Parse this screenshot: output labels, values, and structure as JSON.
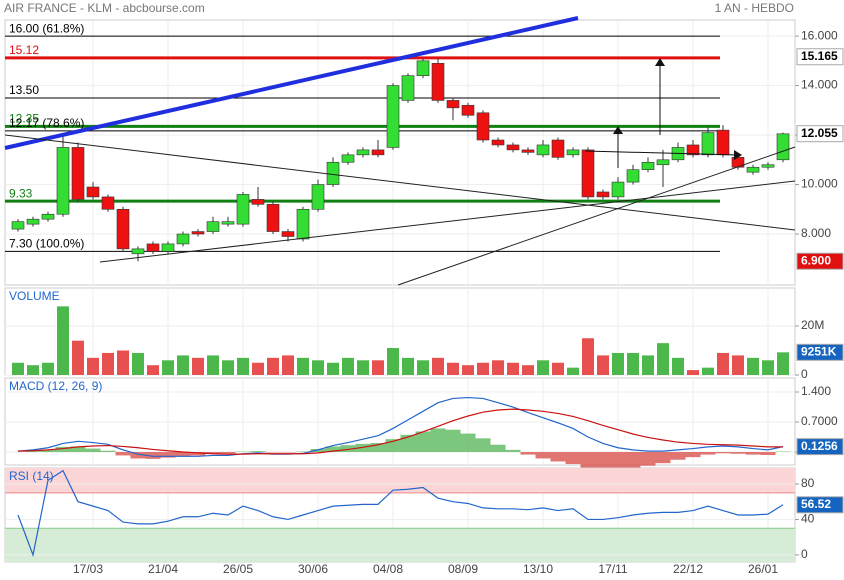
{
  "header": {
    "title": "AIR FRANCE - KLM - abcbourse.com",
    "period": "1 AN - HEBDO"
  },
  "chart_data": [
    {
      "type": "candlestick",
      "categories": [
        null,
        null,
        null,
        null,
        null,
        "17/03",
        null,
        null,
        null,
        null,
        "21/04",
        null,
        null,
        null,
        null,
        "26/05",
        null,
        null,
        null,
        null,
        "30/06",
        null,
        null,
        null,
        null,
        "04/08",
        null,
        null,
        null,
        null,
        "08/09",
        null,
        null,
        null,
        null,
        "13/10",
        null,
        null,
        null,
        null,
        "17/11",
        null,
        null,
        null,
        null,
        "22/12",
        null,
        null,
        null,
        null,
        "26/01",
        null
      ],
      "open": [
        8.2,
        8.4,
        8.6,
        8.8,
        11.5,
        9.9,
        9.5,
        9.0,
        7.2,
        7.6,
        7.3,
        7.6,
        8.1,
        8.1,
        8.4,
        8.4,
        9.4,
        9.2,
        8.1,
        7.8,
        9.0,
        10.0,
        10.9,
        11.2,
        11.4,
        11.5,
        13.4,
        14.4,
        14.9,
        13.4,
        13.2,
        12.9,
        11.8,
        11.6,
        11.4,
        11.2,
        11.8,
        11.2,
        11.4,
        9.7,
        9.5,
        10.1,
        10.6,
        10.8,
        11.0,
        11.6,
        11.2,
        12.2,
        11.1,
        10.5,
        10.7,
        11.0
      ],
      "high": [
        8.6,
        8.7,
        8.9,
        12.0,
        11.7,
        10.1,
        9.6,
        9.1,
        7.5,
        7.7,
        7.7,
        8.1,
        8.2,
        8.7,
        8.7,
        9.7,
        9.9,
        9.3,
        8.2,
        9.1,
        10.2,
        11.1,
        11.3,
        11.5,
        11.8,
        14.1,
        14.5,
        15.1,
        15.1,
        13.5,
        13.3,
        13.0,
        11.9,
        11.7,
        11.5,
        11.8,
        11.9,
        11.5,
        11.5,
        9.8,
        10.3,
        10.8,
        11.1,
        11.4,
        11.7,
        11.8,
        12.3,
        12.4,
        11.2,
        10.8,
        10.9,
        12.1
      ],
      "low": [
        8.1,
        8.3,
        8.5,
        8.7,
        9.3,
        9.4,
        8.9,
        7.3,
        6.9,
        7.2,
        7.2,
        7.5,
        7.9,
        8.0,
        8.3,
        8.3,
        9.1,
        8.0,
        7.7,
        7.7,
        8.9,
        9.9,
        10.8,
        11.1,
        11.1,
        11.4,
        13.3,
        14.3,
        13.3,
        12.6,
        12.7,
        11.7,
        11.5,
        11.3,
        11.2,
        11.1,
        11.0,
        11.1,
        9.4,
        9.4,
        9.4,
        10.0,
        10.5,
        9.9,
        10.9,
        11.1,
        11.1,
        11.1,
        10.6,
        10.4,
        10.6,
        10.9
      ],
      "close": [
        8.5,
        8.6,
        8.8,
        11.5,
        9.4,
        9.5,
        9.0,
        7.4,
        7.4,
        7.3,
        7.6,
        8.0,
        8.0,
        8.5,
        8.5,
        9.6,
        9.2,
        8.1,
        7.9,
        9.0,
        10.0,
        10.9,
        11.2,
        11.4,
        11.2,
        14.0,
        14.4,
        15.0,
        13.4,
        13.1,
        12.8,
        11.8,
        11.6,
        11.4,
        11.3,
        11.6,
        11.1,
        11.4,
        9.5,
        9.5,
        10.1,
        10.6,
        10.9,
        11.0,
        11.5,
        11.2,
        12.1,
        11.2,
        10.7,
        10.7,
        10.8,
        12.05
      ],
      "up_color": "#33dd33",
      "down_color": "#ee1111",
      "ylim": [
        5.94,
        16.65
      ],
      "yticks": [
        {
          "value": 16,
          "label": "16.000"
        },
        {
          "value": 14,
          "label": "14.000"
        },
        {
          "value": 12,
          "label": "12.000"
        },
        {
          "value": 10,
          "label": "10.000"
        },
        {
          "value": 8,
          "label": "8.000"
        }
      ],
      "levels": [
        {
          "label": "16.00 (61.8%)",
          "value": 16.0,
          "color": "#000000",
          "width": 1
        },
        {
          "label": "15.12",
          "value": 15.12,
          "color": "#e01010",
          "width": 3
        },
        {
          "label": "13.50",
          "value": 13.5,
          "color": "#000000",
          "width": 1
        },
        {
          "label": "12.35",
          "value": 12.35,
          "color": "#108010",
          "width": 3
        },
        {
          "label": "12.17 (78.6%)",
          "value": 12.17,
          "color": "#000000",
          "width": 1
        },
        {
          "label": "9.33",
          "value": 9.33,
          "color": "#108010",
          "width": 3
        },
        {
          "label": "7.30 (100.0%)",
          "value": 7.3,
          "color": "#000000",
          "width": 1
        }
      ],
      "badges": [
        {
          "value": 15.165,
          "label": "15.165",
          "color": "#ffffff",
          "text_color": "#000000"
        },
        {
          "value": 12.055,
          "label": "12.055",
          "color": "#ffffff",
          "text_color": "#000000"
        },
        {
          "value": 6.9,
          "label": "6.900",
          "color": "#e01010",
          "text_color": "#ffffff"
        }
      ]
    },
    {
      "type": "bar",
      "title": "VOLUME",
      "values": [
        5,
        4,
        5,
        28,
        14,
        7,
        9,
        10,
        9,
        4,
        6,
        8,
        7,
        8,
        6,
        7,
        5,
        7,
        8,
        7,
        6,
        5,
        7,
        6,
        6,
        11,
        7,
        6,
        7,
        5,
        4,
        5,
        6,
        5,
        4,
        6,
        5,
        3,
        15,
        8,
        9,
        9,
        8,
        13,
        7,
        2,
        3,
        9,
        8,
        7,
        6,
        9.251
      ],
      "up_color": "#4cb84c",
      "down_color": "#e85050",
      "ylim": [
        0,
        35.5
      ],
      "yticks": [
        {
          "value": 20,
          "label": "20M"
        },
        0
      ],
      "badges": [
        {
          "value": 9.251,
          "label": "9251K",
          "color": "#1565c0",
          "text_color": "#ffffff"
        }
      ]
    },
    {
      "type": "macd",
      "title": "MACD (12, 26, 9)",
      "series": [
        {
          "name": "MACD",
          "color": "#2266cc",
          "values": [
            0.02,
            0.05,
            0.1,
            0.2,
            0.25,
            0.22,
            0.18,
            0.05,
            -0.05,
            -0.1,
            -0.1,
            -0.1,
            -0.1,
            -0.08,
            -0.08,
            -0.04,
            -0.02,
            -0.05,
            -0.05,
            -0.03,
            0.05,
            0.15,
            0.22,
            0.3,
            0.38,
            0.55,
            0.75,
            0.95,
            1.15,
            1.25,
            1.27,
            1.25,
            1.15,
            1.05,
            0.92,
            0.8,
            0.68,
            0.55,
            0.35,
            0.2,
            0.1,
            0.05,
            0.02,
            0.02,
            0.05,
            0.08,
            0.12,
            0.14,
            0.12,
            0.08,
            0.05,
            0.1256
          ]
        },
        {
          "name": "Signal",
          "color": "#cc1111",
          "values": [
            0.02,
            0.03,
            0.05,
            0.08,
            0.12,
            0.14,
            0.15,
            0.13,
            0.1,
            0.06,
            0.03,
            0.0,
            -0.02,
            -0.04,
            -0.05,
            -0.05,
            -0.04,
            -0.04,
            -0.04,
            -0.04,
            -0.02,
            0.02,
            0.06,
            0.11,
            0.17,
            0.25,
            0.35,
            0.47,
            0.6,
            0.73,
            0.84,
            0.93,
            0.98,
            1.0,
            0.98,
            0.95,
            0.9,
            0.83,
            0.73,
            0.62,
            0.52,
            0.42,
            0.34,
            0.28,
            0.23,
            0.2,
            0.18,
            0.17,
            0.16,
            0.14,
            0.12,
            0.12
          ]
        }
      ],
      "histogram": [
        0,
        0.02,
        0.05,
        0.12,
        0.13,
        0.08,
        0.03,
        -0.08,
        -0.15,
        -0.16,
        -0.13,
        -0.1,
        -0.08,
        -0.04,
        -0.03,
        0.01,
        0.02,
        -0.01,
        -0.01,
        0.01,
        0.07,
        0.13,
        0.16,
        0.19,
        0.21,
        0.3,
        0.4,
        0.48,
        0.55,
        0.52,
        0.43,
        0.32,
        0.17,
        0.05,
        -0.06,
        -0.15,
        -0.22,
        -0.28,
        -0.38,
        -0.42,
        -0.42,
        -0.37,
        -0.32,
        -0.26,
        -0.18,
        -0.12,
        -0.06,
        -0.03,
        -0.04,
        -0.06,
        -0.07,
        0.01
      ],
      "hist_up_color": "#5cb85c",
      "hist_down_color": "#d9534f",
      "ylim": [
        -0.303,
        1.727
      ],
      "yticks": [
        {
          "value": 1.4,
          "label": "1.400"
        },
        {
          "value": 0.7,
          "label": "0.7000"
        },
        0
      ],
      "badges": [
        {
          "value": 0.1256,
          "label": "0.1256",
          "color": "#1565c0",
          "text_color": "#ffffff"
        }
      ]
    },
    {
      "type": "line",
      "title": "RSI (14)",
      "series": [
        {
          "name": "RSI",
          "color": "#2266cc",
          "values": [
            45,
            0,
            84,
            95,
            60,
            55,
            50,
            37,
            35,
            35,
            38,
            43,
            43,
            47,
            45,
            55,
            50,
            43,
            40,
            45,
            50,
            55,
            56,
            57,
            57,
            73,
            74,
            76,
            64,
            60,
            58,
            53,
            52,
            52,
            51,
            53,
            50,
            52,
            40,
            40,
            42,
            45,
            47,
            48,
            48,
            50,
            55,
            50,
            45,
            45,
            46,
            56.52
          ]
        }
      ],
      "overbought": 70,
      "oversold": 30,
      "ylim": [
        -8,
        98
      ],
      "yticks": [
        80,
        40,
        0
      ],
      "badges": [
        {
          "value": 56.52,
          "label": "56.52",
          "color": "#1565c0",
          "text_color": "#ffffff"
        }
      ]
    }
  ]
}
